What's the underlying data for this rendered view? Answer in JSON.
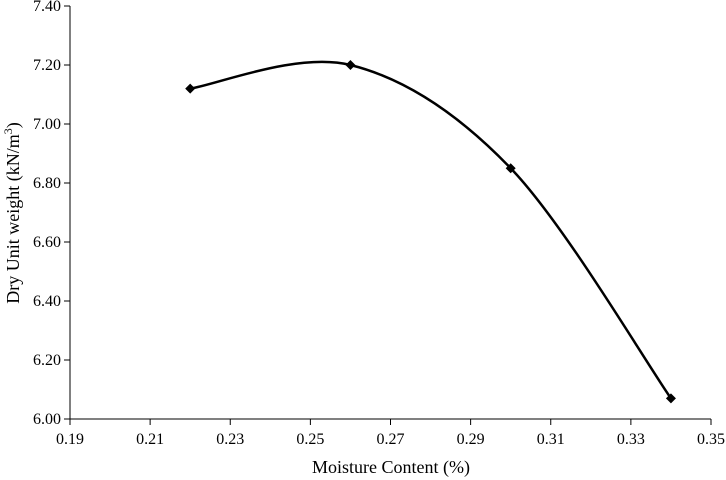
{
  "chart_data": {
    "type": "scatter",
    "title": "",
    "xlabel": "Moisture Content (%)",
    "ylabel": "Dry Unit weight (kN/m",
    "ylabel_superscript": "3",
    "ylabel_suffix": ")",
    "xlim": [
      0.19,
      0.35
    ],
    "ylim": [
      6.0,
      7.4
    ],
    "x_ticks": [
      "0.19",
      "0.21",
      "0.23",
      "0.25",
      "0.27",
      "0.29",
      "0.31",
      "0.33",
      "0.35"
    ],
    "y_ticks": [
      "6.00",
      "6.20",
      "6.40",
      "6.60",
      "6.80",
      "7.00",
      "7.20",
      "7.40"
    ],
    "grid": false,
    "legend": "none",
    "series": [
      {
        "x": [
          0.22,
          0.26,
          0.3,
          0.34
        ],
        "y": [
          7.12,
          7.2,
          6.85,
          6.07
        ],
        "marker": "diamond",
        "line": "smooth",
        "color": "#000000"
      }
    ]
  }
}
